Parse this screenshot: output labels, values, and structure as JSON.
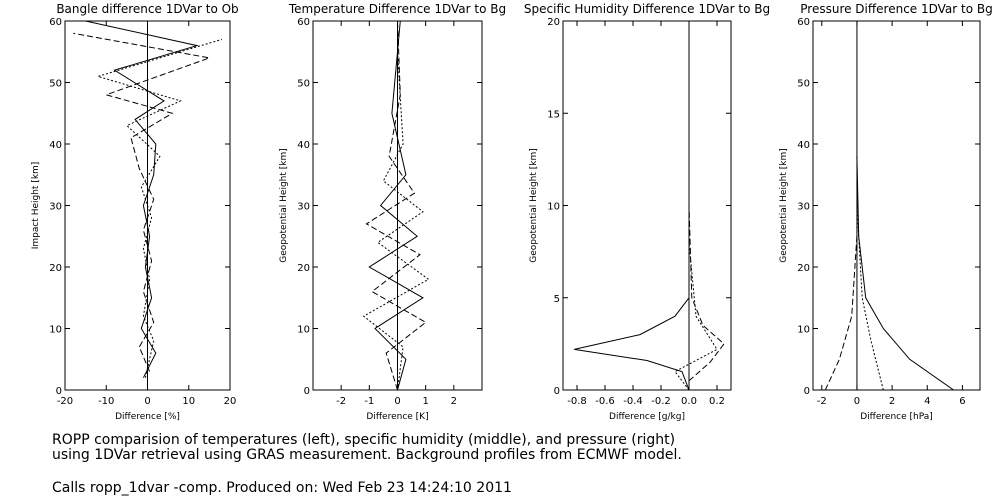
{
  "chart_data": [
    {
      "type": "line",
      "title": "Bangle difference 1DVar to Ob",
      "xlabel": "Difference [%]",
      "ylabel": "Impact Height [km]",
      "xlim": [
        -20,
        20
      ],
      "ylim": [
        0,
        60
      ],
      "xticks": [
        "-20",
        "-10",
        "0",
        "10",
        "20"
      ],
      "yticks": [
        "0",
        "10",
        "20",
        "30",
        "40",
        "50",
        "60"
      ],
      "grid": false,
      "legend": "none",
      "series": [
        {
          "x": [
            -1,
            2,
            -1.5,
            1,
            -0.5,
            0.5,
            -1,
            1.5,
            2,
            -3,
            4,
            -8,
            12,
            -15
          ],
          "y": [
            2,
            6,
            10,
            15,
            20,
            25,
            30,
            35,
            40,
            44,
            47,
            52,
            56,
            60
          ]
        },
        {
          "x": [
            0.5,
            -2,
            1.5,
            -1,
            1,
            -1,
            1.5,
            -2,
            -4,
            6,
            -10,
            15,
            -18
          ],
          "y": [
            3,
            7,
            11,
            16,
            21,
            26,
            31,
            36,
            41,
            45,
            48,
            54,
            58
          ]
        },
        {
          "x": [
            -0.5,
            1.5,
            -1,
            0.5,
            -1,
            1,
            -1.5,
            3,
            -5,
            8,
            -12,
            18
          ],
          "y": [
            2,
            8,
            12,
            18,
            23,
            28,
            33,
            38,
            43,
            47,
            51,
            57
          ]
        }
      ]
    },
    {
      "type": "line",
      "title": "Temperature Difference 1DVar to Bg",
      "xlabel": "Difference [K]",
      "ylabel": "Geopotential Height [km]",
      "xlim": [
        -3,
        3
      ],
      "ylim": [
        0,
        60
      ],
      "xticks": [
        "-2",
        "-1",
        "0",
        "1",
        "2"
      ],
      "yticks": [
        "0",
        "10",
        "20",
        "30",
        "40",
        "50",
        "60"
      ],
      "grid": false,
      "legend": "none",
      "series": [
        {
          "x": [
            0,
            0.3,
            -0.8,
            0.9,
            -1.0,
            0.7,
            -0.6,
            0.3,
            -0.2,
            0.1
          ],
          "y": [
            0,
            5,
            10,
            15,
            20,
            25,
            30,
            35,
            45,
            60
          ]
        },
        {
          "x": [
            0,
            -0.4,
            1.0,
            -0.9,
            0.8,
            -1.1,
            0.6,
            -0.3,
            0.1,
            0
          ],
          "y": [
            0,
            6,
            11,
            16,
            22,
            27,
            32,
            38,
            48,
            60
          ]
        },
        {
          "x": [
            0,
            0.2,
            -1.2,
            1.1,
            -0.7,
            0.9,
            -0.5,
            0.2,
            0
          ],
          "y": [
            0,
            7,
            12,
            18,
            24,
            29,
            34,
            40,
            55
          ]
        }
      ]
    },
    {
      "type": "line",
      "title": "Specific Humidity Difference 1DVar to Bg",
      "xlabel": "Difference [g/kg]",
      "ylabel": "Geopotential Height [km]",
      "xlim": [
        -0.9,
        0.3
      ],
      "ylim": [
        0,
        20
      ],
      "xticks": [
        "-0.8",
        "-0.6",
        "-0.4",
        "-0.2",
        "0.0",
        "0.2"
      ],
      "yticks": [
        "0",
        "5",
        "10",
        "15",
        "20"
      ],
      "grid": false,
      "legend": "none",
      "series": [
        {
          "x": [
            0,
            -0.05,
            -0.3,
            -0.82,
            -0.35,
            -0.1,
            0,
            0
          ],
          "y": [
            0,
            1,
            1.6,
            2.2,
            3.0,
            4.0,
            5.0,
            12
          ]
        },
        {
          "x": [
            0,
            0.15,
            0.25,
            0.1,
            0.02,
            0
          ],
          "y": [
            0.5,
            1.5,
            2.5,
            3.5,
            5,
            10
          ]
        },
        {
          "x": [
            0,
            -0.1,
            0.2,
            0.05,
            0
          ],
          "y": [
            0,
            1,
            2.2,
            4,
            8
          ]
        }
      ]
    },
    {
      "type": "line",
      "title": "Pressure Difference 1DVar to Bg",
      "xlabel": "Difference [hPa]",
      "ylabel": "Geopotential Height [km]",
      "xlim": [
        -2.5,
        7
      ],
      "ylim": [
        0,
        60
      ],
      "xticks": [
        "-2",
        "0",
        "2",
        "4",
        "6"
      ],
      "yticks": [
        "0",
        "10",
        "20",
        "30",
        "40",
        "50",
        "60"
      ],
      "grid": false,
      "legend": "none",
      "series": [
        {
          "x": [
            5.5,
            3,
            1.5,
            0.5,
            0.1,
            0
          ],
          "y": [
            0,
            5,
            10,
            15,
            25,
            38
          ]
        },
        {
          "x": [
            -1.8,
            -1,
            -0.3,
            0
          ],
          "y": [
            0,
            5,
            12,
            25
          ]
        },
        {
          "x": [
            1.5,
            0.8,
            0.3,
            0
          ],
          "y": [
            0,
            8,
            15,
            30
          ]
        }
      ]
    }
  ],
  "caption": {
    "line1": "ROPP comparision of temperatures (left), specific humidity (middle), and pressure (right)",
    "line2": "using 1DVar retrieval using GRAS measurement. Background profiles from ECMWF model.",
    "line3": "Calls ropp_1dvar -comp. Produced on: Wed Feb 23 14:24:10 2011"
  }
}
